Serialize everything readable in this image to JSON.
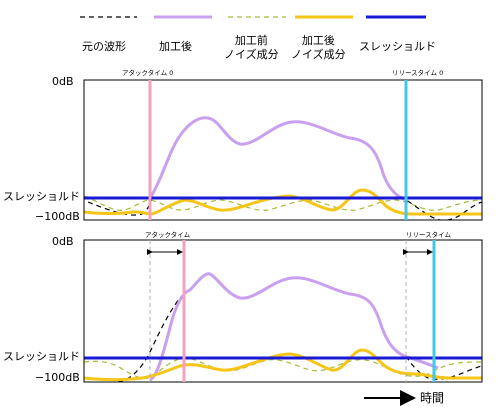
{
  "legend": {
    "items": [
      {
        "label": "元の波形",
        "color": "#000000",
        "dash": "5,4",
        "width": 1.2
      },
      {
        "label": "加工後",
        "color": "#c9a0f0",
        "dash": "",
        "width": 3
      },
      {
        "label": "加工前\nノイズ成分",
        "color": "#a8bb3c",
        "dash": "5,4",
        "width": 1.2
      },
      {
        "label": "加工後\nノイズ成分",
        "color": "#f5c518",
        "dash": "",
        "width": 3
      },
      {
        "label": "スレッショルド",
        "color": "#1a1ad6",
        "dash": "",
        "width": 3
      }
    ]
  },
  "panel1": {
    "top_label": "0dB",
    "threshold_label": "スレッショルド",
    "bottom_label": "−100dB",
    "attack_label": "アタックタイム 0",
    "release_label": "リリースタイム 0"
  },
  "panel2": {
    "top_label": "0dB",
    "threshold_label": "スレッショルド",
    "bottom_label": "−100dB",
    "attack_label": "アタックタイム",
    "release_label": "リリースタイム"
  },
  "time_axis": {
    "label": "時間"
  },
  "colors": {
    "frame": "#000000",
    "guide": "#b0b0b0",
    "attack_marker": "#f4a0c0",
    "release_marker": "#40c8e8",
    "processed": "#c9a0f0",
    "noise_before": "#a8bb3c",
    "noise_after": "#f5c518",
    "threshold": "#1a1ad6"
  }
}
